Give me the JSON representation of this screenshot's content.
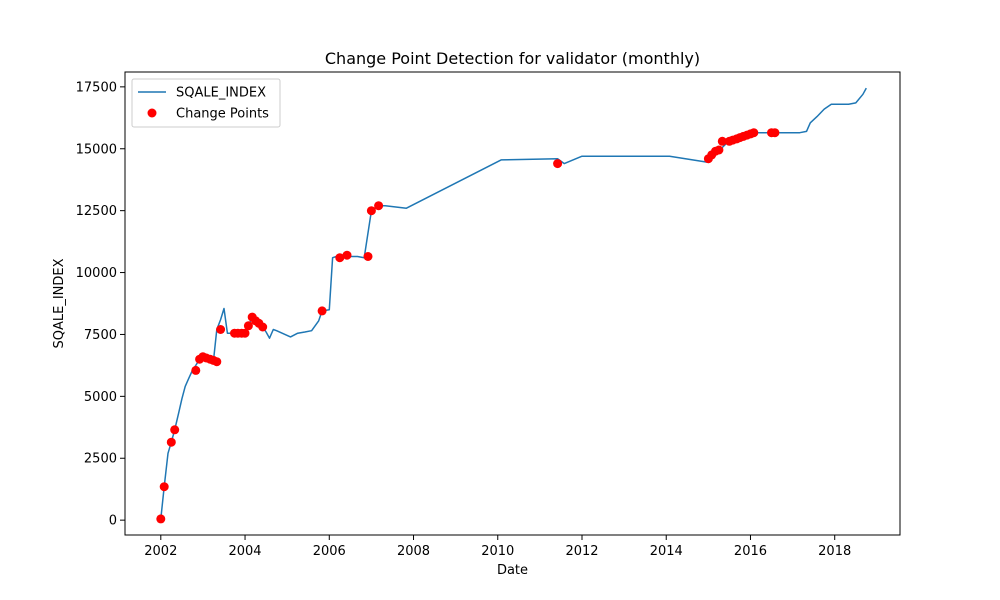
{
  "chart_data": {
    "type": "line",
    "title": "Change Point Detection for validator (monthly)",
    "xlabel": "Date",
    "ylabel": "SQALE_INDEX",
    "xlim": [
      2001.15,
      2019.55
    ],
    "ylim": [
      -600,
      18100
    ],
    "x_ticks": [
      2002,
      2004,
      2006,
      2008,
      2010,
      2012,
      2014,
      2016,
      2018
    ],
    "y_ticks": [
      0,
      2500,
      5000,
      7500,
      10000,
      12500,
      15000,
      17500
    ],
    "y_tick_labels": [
      "0",
      "2500",
      "5000",
      "7500",
      "10000",
      "12500",
      "15000",
      "17500"
    ],
    "legend_position": "top-left",
    "grid": false,
    "colors": {
      "line": "#1f77b4",
      "points": "#ff0000"
    },
    "series": [
      {
        "name": "SQALE_INDEX",
        "kind": "line",
        "x": [
          2002.0,
          2002.08,
          2002.17,
          2002.25,
          2002.33,
          2002.42,
          2002.5,
          2002.58,
          2002.67,
          2002.75,
          2002.83,
          2002.92,
          2003.0,
          2003.08,
          2003.17,
          2003.25,
          2003.33,
          2003.42,
          2003.5,
          2003.58,
          2003.67,
          2003.75,
          2003.83,
          2003.92,
          2004.0,
          2004.08,
          2004.17,
          2004.25,
          2004.33,
          2004.42,
          2004.5,
          2004.58,
          2004.67,
          2004.75,
          2005.08,
          2005.25,
          2005.42,
          2005.58,
          2005.75,
          2005.83,
          2006.0,
          2006.08,
          2006.17,
          2006.33,
          2006.5,
          2006.67,
          2006.83,
          2007.0,
          2007.17,
          2007.33,
          2007.83,
          2010.08,
          2011.42,
          2011.58,
          2012.0,
          2014.08,
          2015.0,
          2015.08,
          2015.17,
          2015.25,
          2015.33,
          2015.42,
          2015.5,
          2015.58,
          2015.67,
          2015.75,
          2015.83,
          2015.92,
          2016.0,
          2016.08,
          2016.25,
          2016.42,
          2016.5,
          2016.58,
          2016.67,
          2016.83,
          2017.0,
          2017.17,
          2017.33,
          2017.42,
          2017.58,
          2017.75,
          2017.92,
          2018.33,
          2018.5,
          2018.67,
          2018.75
        ],
        "y": [
          50,
          1350,
          2700,
          3150,
          3650,
          4300,
          4900,
          5400,
          5750,
          6050,
          6250,
          6500,
          6600,
          6550,
          6500,
          6450,
          7700,
          8100,
          8550,
          7550,
          7550,
          7550,
          7550,
          7550,
          7550,
          7850,
          8200,
          8050,
          7950,
          7800,
          7600,
          7350,
          7700,
          7650,
          7400,
          7550,
          7600,
          7650,
          8050,
          8450,
          8500,
          10600,
          10650,
          10700,
          10650,
          10650,
          10600,
          12500,
          12700,
          12700,
          12600,
          14550,
          14600,
          14400,
          14700,
          14700,
          14450,
          14600,
          14750,
          14900,
          15050,
          15200,
          15300,
          15300,
          15350,
          15400,
          15500,
          15550,
          15600,
          15650,
          15650,
          15650,
          15650,
          15650,
          15650,
          15650,
          15650,
          15650,
          15700,
          16050,
          16300,
          16600,
          16800,
          16800,
          16850,
          17200,
          17450
        ]
      },
      {
        "name": "Change Points",
        "kind": "scatter",
        "x": [
          2002.0,
          2002.08,
          2002.25,
          2002.33,
          2002.83,
          2002.92,
          2003.0,
          2003.08,
          2003.17,
          2003.25,
          2003.33,
          2003.42,
          2003.75,
          2003.83,
          2003.92,
          2004.0,
          2004.08,
          2004.17,
          2004.25,
          2004.33,
          2004.42,
          2005.83,
          2006.25,
          2006.42,
          2006.92,
          2007.0,
          2007.17,
          2011.42,
          2015.0,
          2015.08,
          2015.17,
          2015.25,
          2015.33,
          2015.5,
          2015.58,
          2015.67,
          2015.75,
          2015.83,
          2015.92,
          2016.0,
          2016.08,
          2016.5,
          2016.58
        ],
        "y": [
          50,
          1350,
          3150,
          3650,
          6050,
          6500,
          6600,
          6550,
          6500,
          6450,
          6400,
          7700,
          7550,
          7550,
          7550,
          7550,
          7850,
          8200,
          8050,
          7950,
          7800,
          8450,
          10600,
          10700,
          10650,
          12500,
          12700,
          14400,
          14600,
          14750,
          14900,
          14950,
          15300,
          15300,
          15350,
          15400,
          15450,
          15500,
          15550,
          15600,
          15650,
          15650,
          15650
        ]
      }
    ]
  }
}
